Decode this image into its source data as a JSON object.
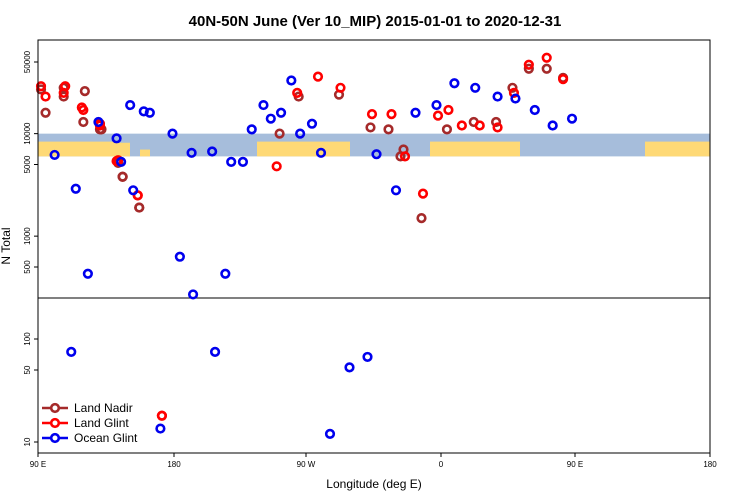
{
  "chart_data": {
    "type": "scatter",
    "title": "40N-50N June (Ver 10_MIP)   2015-01-01 to 2020-12-31",
    "xlabel": "Longitude (deg E)",
    "ylabel": "N Total",
    "y_scale": "log",
    "grid": false,
    "legend_position": "bottom-left",
    "x_tick_labels": [
      "90 E",
      "180",
      "90 W",
      "0",
      "90 E",
      "180"
    ],
    "y_tick_labels": [
      "10",
      "50",
      "100",
      "500",
      "1000",
      "5000",
      "10000",
      "50000"
    ],
    "background_map_band": {
      "y_range": [
        6000,
        10000
      ],
      "ocean_color": "#a6bddb",
      "land_color": "#fed976"
    },
    "series": [
      {
        "name": "Land Nadir",
        "color": "#a52a2a",
        "points": [
          [
            92,
            27000
          ],
          [
            107,
            23000
          ],
          [
            120,
            13000
          ],
          [
            131,
            11000
          ],
          [
            143,
            5200
          ],
          [
            146,
            3800
          ],
          [
            157,
            1900
          ],
          [
            252,
            10000
          ],
          [
            265,
            23000
          ],
          [
            292,
            24000
          ],
          [
            313,
            11500
          ],
          [
            325,
            11000
          ],
          [
            333,
            6000
          ],
          [
            335,
            7000
          ],
          [
            347,
            1500
          ],
          [
            4,
            11000
          ],
          [
            22,
            13000
          ],
          [
            37,
            13000
          ],
          [
            48,
            28000
          ],
          [
            59,
            43000
          ],
          [
            71,
            43000
          ],
          [
            82,
            35000
          ],
          [
            95,
            16000
          ],
          [
            107,
            28000
          ],
          [
            121,
            26000
          ],
          [
            132,
            11000
          ],
          [
            143,
            5200
          ],
          [
            146,
            3800
          ],
          [
            157,
            1900
          ]
        ]
      },
      {
        "name": "Land Glint",
        "color": "#ff0000",
        "points": [
          [
            92,
            29000
          ],
          [
            107,
            25000
          ],
          [
            120,
            17000
          ],
          [
            131,
            12500
          ],
          [
            143,
            5500
          ],
          [
            156,
            2500
          ],
          [
            172,
            18
          ],
          [
            250,
            4800
          ],
          [
            264,
            25000
          ],
          [
            278,
            36000
          ],
          [
            293,
            28000
          ],
          [
            314,
            15500
          ],
          [
            327,
            15500
          ],
          [
            336,
            6000
          ],
          [
            348,
            2600
          ],
          [
            358,
            15000
          ],
          [
            5,
            17000
          ],
          [
            14,
            12000
          ],
          [
            26,
            12000
          ],
          [
            38,
            11500
          ],
          [
            49,
            25000
          ],
          [
            59,
            47000
          ],
          [
            71,
            55000
          ],
          [
            82,
            34000
          ],
          [
            95,
            23000
          ],
          [
            108,
            29000
          ],
          [
            119,
            18000
          ],
          [
            131,
            12000
          ],
          [
            142,
            5400
          ],
          [
            156,
            2500
          ],
          [
            172,
            18
          ]
        ]
      },
      {
        "name": "Ocean Glint",
        "color": "#0000ee",
        "points": [
          [
            112,
            75
          ],
          [
            123,
            430
          ],
          [
            145,
            5300
          ],
          [
            151,
            19000
          ],
          [
            164,
            16000
          ],
          [
            179,
            10000
          ],
          [
            192,
            6500
          ],
          [
            206,
            6700
          ],
          [
            219,
            5300
          ],
          [
            233,
            11000
          ],
          [
            246,
            14000
          ],
          [
            260,
            33000
          ],
          [
            274,
            12500
          ],
          [
            286,
            12
          ],
          [
            299,
            53
          ],
          [
            311,
            67
          ],
          [
            317,
            6300
          ],
          [
            330,
            2800
          ],
          [
            343,
            16000
          ],
          [
            357,
            19000
          ],
          [
            9,
            31000
          ],
          [
            23,
            28000
          ],
          [
            38,
            23000
          ],
          [
            50,
            22000
          ],
          [
            63,
            17000
          ],
          [
            75,
            12000
          ],
          [
            88,
            14000
          ],
          [
            101,
            6200
          ],
          [
            115,
            2900
          ],
          [
            130,
            13000
          ],
          [
            142,
            9000
          ],
          [
            153,
            2800
          ],
          [
            160,
            16500
          ],
          [
            171,
            13.5
          ],
          [
            184,
            630
          ],
          [
            193,
            270
          ],
          [
            208,
            75
          ],
          [
            215,
            430
          ],
          [
            227,
            5300
          ],
          [
            241,
            19000
          ],
          [
            253,
            16000
          ],
          [
            266,
            10000
          ],
          [
            280,
            6500
          ]
        ]
      }
    ]
  }
}
